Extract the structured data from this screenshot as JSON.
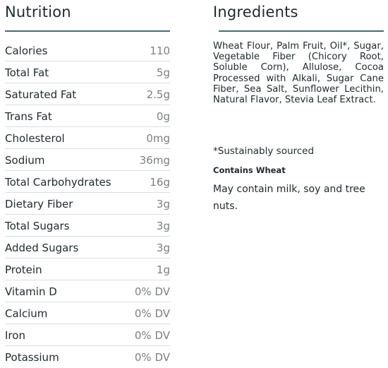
{
  "nutrition": {
    "title": "Nutrition",
    "rows": [
      {
        "label": "Calories",
        "value": "110"
      },
      {
        "label": "Total Fat",
        "value": "5g"
      },
      {
        "label": "Saturated Fat",
        "value": "2.5g"
      },
      {
        "label": "Trans Fat",
        "value": "0g"
      },
      {
        "label": "Cholesterol",
        "value": "0mg"
      },
      {
        "label": "Sodium",
        "value": "36mg"
      },
      {
        "label": "Total Carbohydrates",
        "value": "16g"
      },
      {
        "label": "Dietary Fiber",
        "value": "3g"
      },
      {
        "label": "Total Sugars",
        "value": "3g"
      },
      {
        "label": "Added Sugars",
        "value": "3g"
      },
      {
        "label": "Protein",
        "value": "1g"
      },
      {
        "label": "Vitamin D",
        "value": "0% DV"
      },
      {
        "label": "Calcium",
        "value": "0% DV"
      },
      {
        "label": "Iron",
        "value": "0% DV"
      },
      {
        "label": "Potassium",
        "value": "0% DV"
      }
    ]
  },
  "ingredients": {
    "title": "Ingredients",
    "text": "Wheat Flour, Palm Fruit, Oil*, Sugar, Vegetable Fiber (Chicory Root, Soluble Corn), Allulose, Cocoa Processed with Alkali, Sugar Cane Fiber, Sea Salt, Sunflower Lecithin, Natural Flavor, Stevia Leaf Extract.",
    "note": "*Sustainably sourced",
    "contains": "Contains Wheat",
    "may_contain": "May contain milk, soy and tree nuts."
  },
  "colors": {
    "accent_rule": "#3d6f7a",
    "text": "#1f2a2e",
    "value_text": "#7a7f82",
    "row_divider": "#dadfe0"
  }
}
